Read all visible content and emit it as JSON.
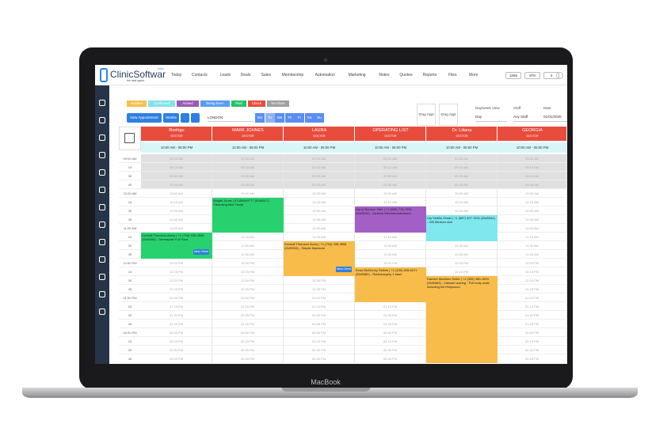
{
  "header": {
    "logo": "ClinicSoftware",
    "logo_suffix": ".com",
    "tagline": "the staff agent",
    "nav": [
      "Today",
      "Contacts",
      "Leads",
      "Deals",
      "Sales",
      "Membership",
      "Automation",
      "Marketing",
      "Notes",
      "Quotes",
      "Reports",
      "Files",
      "More"
    ],
    "tools": [
      "1085",
      "878",
      "4"
    ]
  },
  "statuses": [
    {
      "label": "Booked",
      "color": "#f7c04a"
    },
    {
      "label": "Confirmed",
      "color": "#7fe3ea"
    },
    {
      "label": "Arrived",
      "color": "#9b59b6"
    },
    {
      "label": "Being Seen",
      "color": "#5b9bf5"
    },
    {
      "label": "Paid",
      "color": "#27c26a"
    },
    {
      "label": "Check",
      "color": "#e84c3d"
    },
    {
      "label": "No-show",
      "color": "#a0a0a0"
    }
  ],
  "toolbar": {
    "new_appointment": "New Appointment",
    "weeks": "Weeks",
    "location": "LONDON",
    "days": [
      "Mo",
      "Tu",
      "We",
      "Th",
      "Fr",
      "Sa",
      "Su"
    ],
    "drag": [
      "Drag Appt",
      "Drag Appt"
    ],
    "view_label": "Day/week View",
    "view": "Day",
    "staff_label": "Staff",
    "staff": "Any Staff",
    "date_label": "Date",
    "date": "01/01/2020"
  },
  "calendar": {
    "hours": "10:00 AM - 08:00 PM",
    "columns": [
      {
        "name": "Rodrigo",
        "role": "DOCTOR",
        "appointments": [
          {
            "text": "Kendall Thomson Avery | +1 (754) 335-3808 (ID#5350) - Dermaplan Full Face",
            "color": "#27d26e",
            "badge": "New Client"
          }
        ]
      },
      {
        "name": "MARK JOHNES",
        "role": "DOCTOR",
        "appointments": [
          {
            "text": "Abigail Jones | 07458369777 (ID#5617) - Cleansing Mini Facial",
            "color": "#27d26e"
          }
        ]
      },
      {
        "name": "LAURA",
        "role": "DOCTOR",
        "appointments": [
          {
            "text": "Kendall Thomson Avery | +1 (754) 335-3808 (ID#5334) - Simple Manicure",
            "color": "#f7bc4a",
            "badge": "New Client"
          }
        ]
      },
      {
        "name": "OPERATING LIST",
        "role": "DOCTOR",
        "appointments": [
          {
            "text": "Darryl Benson Sale | +1 (608) 715-7332 (ID#5516) - Medical Microdermabrasion",
            "color": "#a45fc6"
          },
          {
            "text": "Evan McKinney Stokes | +1 (430) 828-6071 (ID#5582) - Radiosurgery 1 laser",
            "color": "#f7bc4a"
          }
        ]
      },
      {
        "name": "Dr. Liliana",
        "role": "DOCTOR",
        "appointments": [
          {
            "text": "Lily Sedillo Zinski | +1 (587) 407-7631 (ID#5541) - Gift Medium size",
            "color": "#7fe8ee"
          },
          {
            "text": "Damien Martinez Smith | +1 (335) 485-1594 (ID#5563) - Intimate waxing - Full body male including full Hollywood",
            "color": "#f7bc4a"
          }
        ]
      },
      {
        "name": "GEORGIA",
        "role": "DOCTOR",
        "appointments": []
      }
    ],
    "rows": [
      {
        "label": "09:00 AM",
        "slot": "09:00 AM"
      },
      {
        "label": "15",
        "slot": "09:15 AM"
      },
      {
        "label": "30",
        "slot": "09:30 AM"
      },
      {
        "label": "45",
        "slot": "09:45 AM"
      },
      {
        "label": "10:00 AM",
        "slot": "10:00 AM"
      },
      {
        "label": "15",
        "slot": "10:15 AM"
      },
      {
        "label": "30",
        "slot": "10:30 AM"
      },
      {
        "label": "45",
        "slot": "10:45 AM"
      },
      {
        "label": "11:00 AM",
        "slot": "11:00 AM"
      },
      {
        "label": "15",
        "slot": "11:15 AM"
      },
      {
        "label": "30",
        "slot": "11:30 AM"
      },
      {
        "label": "45",
        "slot": "11:45 AM"
      },
      {
        "label": "12:00 PM",
        "slot": "12:00 PM"
      },
      {
        "label": "15",
        "slot": "12:15 PM"
      },
      {
        "label": "30",
        "slot": "12:30 PM"
      },
      {
        "label": "45",
        "slot": "12:45 PM"
      },
      {
        "label": "01:00 PM",
        "slot": "01:00 PM"
      },
      {
        "label": "15",
        "slot": "01:15 PM"
      },
      {
        "label": "30",
        "slot": "01:30 PM"
      },
      {
        "label": "45",
        "slot": "01:45 PM"
      },
      {
        "label": "02:00 PM",
        "slot": "02:00 PM"
      },
      {
        "label": "15",
        "slot": "02:15 PM"
      },
      {
        "label": "30",
        "slot": "02:30 PM"
      },
      {
        "label": "45",
        "slot": "02:45 PM"
      }
    ]
  },
  "device": {
    "label": "MacBook"
  }
}
